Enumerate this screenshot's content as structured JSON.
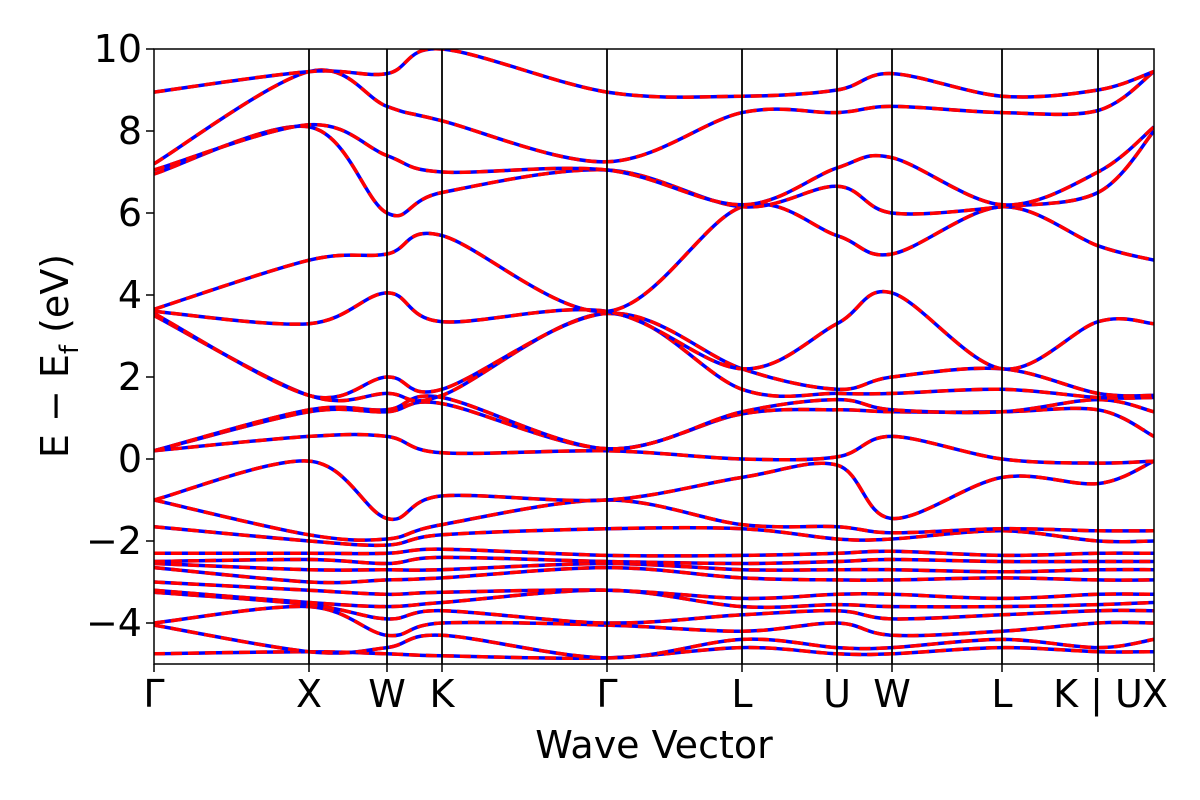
{
  "chart_data": {
    "type": "line",
    "title": "",
    "xlabel": "Wave Vector",
    "ylabel": {
      "main": "E − E",
      "subscript": "f",
      "unit": " (eV)"
    },
    "ylim": [
      -5,
      10
    ],
    "y_ticks": [
      10,
      8,
      6,
      4,
      2,
      0,
      -2,
      -4
    ],
    "y_tick_labels": [
      "10",
      "8",
      "6",
      "4",
      "2",
      "0",
      "−2",
      "−4"
    ],
    "xlim": [
      0,
      1
    ],
    "k_points": [
      {
        "label": "Γ",
        "x": 0.0
      },
      {
        "label": "X",
        "x": 0.155
      },
      {
        "label": "W",
        "x": 0.233
      },
      {
        "label": "K",
        "x": 0.288
      },
      {
        "label": "Γ",
        "x": 0.453
      },
      {
        "label": "L",
        "x": 0.588
      },
      {
        "label": "U",
        "x": 0.683
      },
      {
        "label": "W",
        "x": 0.738
      },
      {
        "label": "L",
        "x": 0.848
      },
      {
        "label": "K | U",
        "x": 0.944
      },
      {
        "label": "X",
        "x": 1.0
      }
    ],
    "grid": false,
    "legend": "none",
    "colors": {
      "series_solid": "#ff0000",
      "series_dashed": "#0000ff",
      "kline": "#000000"
    },
    "line_styles": {
      "solid_series": "solid",
      "dashed_series": "dashed"
    },
    "bands": [
      [
        [
          0,
          -4.75
        ],
        [
          0.155,
          -4.7
        ],
        [
          0.233,
          -4.75
        ],
        [
          0.288,
          -4.8
        ],
        [
          0.453,
          -4.85
        ],
        [
          0.588,
          -4.6
        ],
        [
          0.683,
          -4.75
        ],
        [
          0.738,
          -4.75
        ],
        [
          0.848,
          -4.6
        ],
        [
          0.944,
          -4.7
        ],
        [
          1.0,
          -4.7
        ]
      ],
      [
        [
          0,
          -4.05
        ],
        [
          0.155,
          -4.7
        ],
        [
          0.233,
          -4.6
        ],
        [
          0.288,
          -4.3
        ],
        [
          0.453,
          -4.85
        ],
        [
          0.588,
          -4.4
        ],
        [
          0.683,
          -4.6
        ],
        [
          0.738,
          -4.6
        ],
        [
          0.848,
          -4.4
        ],
        [
          0.944,
          -4.6
        ],
        [
          1.0,
          -4.4
        ]
      ],
      [
        [
          0,
          -4.0
        ],
        [
          0.155,
          -3.6
        ],
        [
          0.233,
          -4.3
        ],
        [
          0.288,
          -4.0
        ],
        [
          0.453,
          -4.05
        ],
        [
          0.588,
          -4.2
        ],
        [
          0.683,
          -4.0
        ],
        [
          0.738,
          -4.3
        ],
        [
          0.848,
          -4.2
        ],
        [
          0.944,
          -4.0
        ],
        [
          1.0,
          -4.0
        ]
      ],
      [
        [
          0,
          -3.25
        ],
        [
          0.155,
          -3.55
        ],
        [
          0.233,
          -3.9
        ],
        [
          0.288,
          -3.7
        ],
        [
          0.453,
          -4.0
        ],
        [
          0.588,
          -3.8
        ],
        [
          0.683,
          -3.7
        ],
        [
          0.738,
          -3.9
        ],
        [
          0.848,
          -3.8
        ],
        [
          0.944,
          -3.7
        ],
        [
          1.0,
          -3.7
        ]
      ],
      [
        [
          0,
          -3.2
        ],
        [
          0.155,
          -3.5
        ],
        [
          0.233,
          -3.6
        ],
        [
          0.288,
          -3.5
        ],
        [
          0.453,
          -3.2
        ],
        [
          0.588,
          -3.6
        ],
        [
          0.683,
          -3.55
        ],
        [
          0.738,
          -3.6
        ],
        [
          0.848,
          -3.6
        ],
        [
          0.944,
          -3.55
        ],
        [
          1.0,
          -3.5
        ]
      ],
      [
        [
          0,
          -3.0
        ],
        [
          0.155,
          -3.2
        ],
        [
          0.233,
          -3.3
        ],
        [
          0.288,
          -3.25
        ],
        [
          0.453,
          -3.2
        ],
        [
          0.588,
          -3.4
        ],
        [
          0.683,
          -3.3
        ],
        [
          0.738,
          -3.3
        ],
        [
          0.848,
          -3.4
        ],
        [
          0.944,
          -3.3
        ],
        [
          1.0,
          -3.3
        ]
      ],
      [
        [
          0,
          -2.65
        ],
        [
          0.155,
          -3.0
        ],
        [
          0.233,
          -2.95
        ],
        [
          0.288,
          -2.9
        ],
        [
          0.453,
          -2.65
        ],
        [
          0.588,
          -2.9
        ],
        [
          0.683,
          -2.95
        ],
        [
          0.738,
          -2.95
        ],
        [
          0.848,
          -2.9
        ],
        [
          0.944,
          -2.95
        ],
        [
          1.0,
          -2.95
        ]
      ],
      [
        [
          0,
          -2.55
        ],
        [
          0.155,
          -2.7
        ],
        [
          0.233,
          -2.7
        ],
        [
          0.288,
          -2.7
        ],
        [
          0.453,
          -2.55
        ],
        [
          0.588,
          -2.7
        ],
        [
          0.683,
          -2.7
        ],
        [
          0.738,
          -2.7
        ],
        [
          0.848,
          -2.75
        ],
        [
          0.944,
          -2.7
        ],
        [
          1.0,
          -2.7
        ]
      ],
      [
        [
          0,
          -2.5
        ],
        [
          0.155,
          -2.45
        ],
        [
          0.233,
          -2.55
        ],
        [
          0.288,
          -2.4
        ],
        [
          0.453,
          -2.5
        ],
        [
          0.588,
          -2.55
        ],
        [
          0.683,
          -2.5
        ],
        [
          0.738,
          -2.45
        ],
        [
          0.848,
          -2.5
        ],
        [
          0.944,
          -2.5
        ],
        [
          1.0,
          -2.5
        ]
      ],
      [
        [
          0,
          -2.3
        ],
        [
          0.155,
          -2.3
        ],
        [
          0.233,
          -2.3
        ],
        [
          0.288,
          -2.2
        ],
        [
          0.453,
          -2.35
        ],
        [
          0.588,
          -2.35
        ],
        [
          0.683,
          -2.3
        ],
        [
          0.738,
          -2.25
        ],
        [
          0.848,
          -2.35
        ],
        [
          0.944,
          -2.3
        ],
        [
          1.0,
          -2.3
        ]
      ],
      [
        [
          0,
          -1.65
        ],
        [
          0.155,
          -2.0
        ],
        [
          0.233,
          -2.1
        ],
        [
          0.288,
          -1.85
        ],
        [
          0.453,
          -1.7
        ],
        [
          0.588,
          -1.7
        ],
        [
          0.683,
          -1.95
        ],
        [
          0.738,
          -1.95
        ],
        [
          0.848,
          -1.75
        ],
        [
          0.944,
          -2.0
        ],
        [
          1.0,
          -2.0
        ]
      ],
      [
        [
          0,
          -1.0
        ],
        [
          0.155,
          -1.85
        ],
        [
          0.233,
          -1.95
        ],
        [
          0.288,
          -1.6
        ],
        [
          0.453,
          -1.0
        ],
        [
          0.588,
          -1.6
        ],
        [
          0.683,
          -1.65
        ],
        [
          0.738,
          -1.8
        ],
        [
          0.848,
          -1.7
        ],
        [
          0.944,
          -1.75
        ],
        [
          1.0,
          -1.75
        ]
      ],
      [
        [
          0,
          -1.0
        ],
        [
          0.155,
          -0.05
        ],
        [
          0.233,
          -1.45
        ],
        [
          0.288,
          -0.9
        ],
        [
          0.453,
          -1.0
        ],
        [
          0.588,
          -0.45
        ],
        [
          0.683,
          -0.15
        ],
        [
          0.738,
          -1.45
        ],
        [
          0.848,
          -0.45
        ],
        [
          0.944,
          -0.6
        ],
        [
          1.0,
          -0.05
        ]
      ],
      [
        [
          0,
          0.2
        ],
        [
          0.155,
          0.55
        ],
        [
          0.233,
          0.55
        ],
        [
          0.288,
          0.15
        ],
        [
          0.453,
          0.2
        ],
        [
          0.588,
          0.0
        ],
        [
          0.683,
          0.05
        ],
        [
          0.738,
          0.55
        ],
        [
          0.848,
          0.0
        ],
        [
          0.944,
          -0.1
        ],
        [
          1.0,
          -0.05
        ]
      ],
      [
        [
          0,
          0.2
        ],
        [
          0.155,
          1.15
        ],
        [
          0.233,
          1.15
        ],
        [
          0.288,
          1.35
        ],
        [
          0.453,
          0.25
        ],
        [
          0.588,
          1.1
        ],
        [
          0.683,
          1.2
        ],
        [
          0.738,
          1.15
        ],
        [
          0.848,
          1.15
        ],
        [
          0.944,
          1.2
        ],
        [
          1.0,
          0.55
        ]
      ],
      [
        [
          0,
          0.2
        ],
        [
          0.155,
          1.2
        ],
        [
          0.233,
          1.2
        ],
        [
          0.288,
          1.5
        ],
        [
          0.453,
          0.25
        ],
        [
          0.588,
          1.15
        ],
        [
          0.683,
          1.45
        ],
        [
          0.738,
          1.2
        ],
        [
          0.848,
          1.15
        ],
        [
          0.944,
          1.45
        ],
        [
          1.0,
          1.15
        ]
      ],
      [
        [
          0,
          3.5
        ],
        [
          0.155,
          1.55
        ],
        [
          0.233,
          1.6
        ],
        [
          0.288,
          1.55
        ],
        [
          0.453,
          3.55
        ],
        [
          0.588,
          1.7
        ],
        [
          0.683,
          1.6
        ],
        [
          0.738,
          1.6
        ],
        [
          0.848,
          1.7
        ],
        [
          0.944,
          1.5
        ],
        [
          1.0,
          1.5
        ]
      ],
      [
        [
          0,
          3.55
        ],
        [
          0.155,
          1.55
        ],
        [
          0.233,
          2.0
        ],
        [
          0.288,
          1.7
        ],
        [
          0.453,
          3.55
        ],
        [
          0.588,
          2.2
        ],
        [
          0.683,
          1.7
        ],
        [
          0.738,
          2.0
        ],
        [
          0.848,
          2.2
        ],
        [
          0.944,
          1.6
        ],
        [
          1.0,
          1.55
        ]
      ],
      [
        [
          0,
          3.6
        ],
        [
          0.155,
          3.3
        ],
        [
          0.233,
          4.05
        ],
        [
          0.288,
          3.35
        ],
        [
          0.453,
          3.6
        ],
        [
          0.588,
          2.2
        ],
        [
          0.683,
          3.3
        ],
        [
          0.738,
          4.05
        ],
        [
          0.848,
          2.2
        ],
        [
          0.944,
          3.35
        ],
        [
          1.0,
          3.3
        ]
      ],
      [
        [
          0,
          3.65
        ],
        [
          0.155,
          4.85
        ],
        [
          0.233,
          5.0
        ],
        [
          0.288,
          5.45
        ],
        [
          0.453,
          3.6
        ],
        [
          0.588,
          6.15
        ],
        [
          0.683,
          5.45
        ],
        [
          0.738,
          5.0
        ],
        [
          0.848,
          6.15
        ],
        [
          0.944,
          5.2
        ],
        [
          1.0,
          4.85
        ]
      ],
      [
        [
          0,
          6.95
        ],
        [
          0.155,
          8.1
        ],
        [
          0.233,
          6.0
        ],
        [
          0.288,
          6.5
        ],
        [
          0.453,
          7.05
        ],
        [
          0.588,
          6.15
        ],
        [
          0.683,
          6.65
        ],
        [
          0.738,
          6.0
        ],
        [
          0.848,
          6.15
        ],
        [
          0.944,
          6.5
        ],
        [
          1.0,
          8.0
        ]
      ],
      [
        [
          0,
          7.05
        ],
        [
          0.155,
          8.15
        ],
        [
          0.233,
          7.4
        ],
        [
          0.288,
          7.0
        ],
        [
          0.453,
          7.05
        ],
        [
          0.588,
          6.2
        ],
        [
          0.683,
          7.1
        ],
        [
          0.738,
          7.35
        ],
        [
          0.848,
          6.2
        ],
        [
          0.944,
          7.0
        ],
        [
          1.0,
          8.1
        ]
      ],
      [
        [
          0,
          7.2
        ],
        [
          0.155,
          9.45
        ],
        [
          0.233,
          8.6
        ],
        [
          0.288,
          8.25
        ],
        [
          0.453,
          7.25
        ],
        [
          0.588,
          8.45
        ],
        [
          0.683,
          8.45
        ],
        [
          0.738,
          8.6
        ],
        [
          0.848,
          8.45
        ],
        [
          0.944,
          8.5
        ],
        [
          1.0,
          9.45
        ]
      ],
      [
        [
          0,
          8.95
        ],
        [
          0.155,
          9.45
        ],
        [
          0.233,
          9.4
        ],
        [
          0.288,
          10.0
        ],
        [
          0.453,
          8.95
        ],
        [
          0.588,
          8.85
        ],
        [
          0.683,
          9.0
        ],
        [
          0.738,
          9.4
        ],
        [
          0.848,
          8.85
        ],
        [
          0.944,
          9.0
        ],
        [
          1.0,
          9.45
        ]
      ]
    ]
  }
}
